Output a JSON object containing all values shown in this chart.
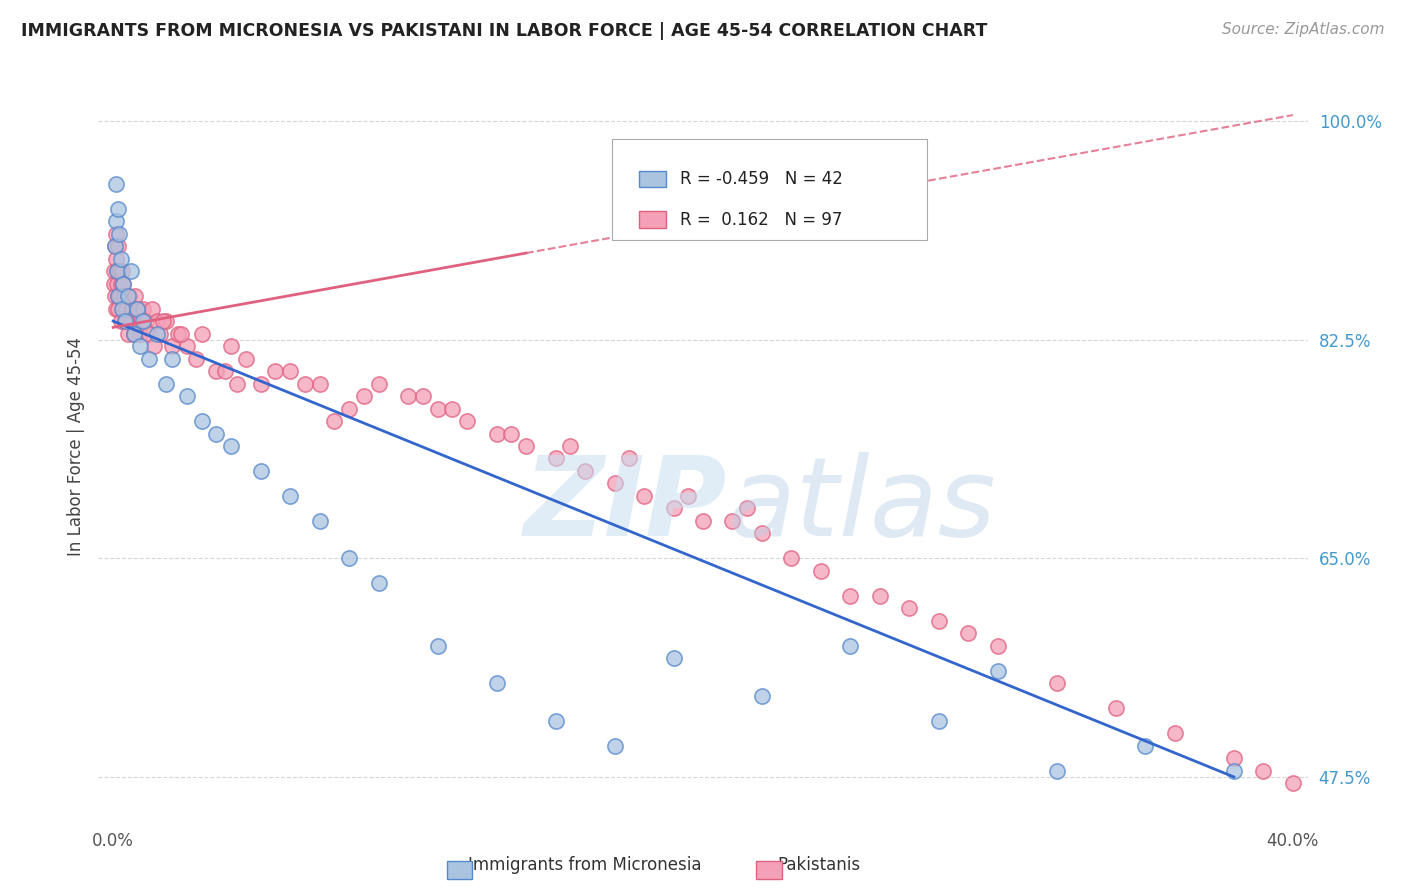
{
  "title": "IMMIGRANTS FROM MICRONESIA VS PAKISTANI IN LABOR FORCE | AGE 45-54 CORRELATION CHART",
  "source": "Source: ZipAtlas.com",
  "xlim": [
    -0.5,
    40.5
  ],
  "ylim": [
    44.0,
    104.0
  ],
  "ytick_vals": [
    47.5,
    65.0,
    82.5,
    100.0
  ],
  "ytick_labels": [
    "47.5%",
    "65.0%",
    "82.5%",
    "100.0%"
  ],
  "xtick_vals": [
    0.0,
    40.0
  ],
  "xtick_labels": [
    "0.0%",
    "40.0%"
  ],
  "micronesia_color": "#aac4e0",
  "pakistani_color": "#f4a0b8",
  "micronesia_edge": "#5588cc",
  "pakistani_edge": "#e06080",
  "trend_blue": "#3366cc",
  "trend_pink": "#e06080",
  "legend_R_micro": "-0.459",
  "legend_N_micro": "42",
  "legend_R_paki": "0.162",
  "legend_N_paki": "97",
  "background_color": "#ffffff",
  "grid_color": "#cccccc",
  "ylabel": "In Labor Force | Age 45-54",
  "micro_x": [
    0.05,
    0.08,
    0.1,
    0.12,
    0.15,
    0.18,
    0.2,
    0.25,
    0.3,
    0.35,
    0.4,
    0.5,
    0.6,
    0.7,
    0.8,
    0.9,
    1.0,
    1.2,
    1.5,
    1.8,
    2.0,
    2.5,
    3.0,
    3.5,
    4.0,
    5.0,
    6.0,
    7.0,
    8.0,
    9.0,
    11.0,
    13.0,
    15.0,
    17.0,
    19.0,
    22.0,
    25.0,
    28.0,
    30.0,
    32.0,
    35.0,
    38.0
  ],
  "micro_y": [
    90.0,
    95.0,
    92.0,
    88.0,
    93.0,
    86.0,
    91.0,
    89.0,
    85.0,
    87.0,
    84.0,
    86.0,
    88.0,
    83.0,
    85.0,
    82.0,
    84.0,
    81.0,
    83.0,
    79.0,
    81.0,
    78.0,
    76.0,
    75.0,
    74.0,
    72.0,
    70.0,
    68.0,
    65.0,
    63.0,
    58.0,
    55.0,
    52.0,
    50.0,
    57.0,
    54.0,
    58.0,
    52.0,
    56.0,
    48.0,
    50.0,
    48.0
  ],
  "paki_x": [
    0.02,
    0.04,
    0.05,
    0.06,
    0.08,
    0.09,
    0.1,
    0.12,
    0.13,
    0.15,
    0.16,
    0.18,
    0.2,
    0.22,
    0.25,
    0.28,
    0.3,
    0.33,
    0.35,
    0.38,
    0.4,
    0.45,
    0.5,
    0.55,
    0.6,
    0.65,
    0.7,
    0.75,
    0.8,
    0.85,
    0.9,
    0.95,
    1.0,
    1.1,
    1.2,
    1.3,
    1.4,
    1.5,
    1.6,
    1.8,
    2.0,
    2.2,
    2.5,
    2.8,
    3.0,
    3.5,
    4.0,
    4.5,
    5.0,
    6.0,
    7.0,
    8.0,
    9.0,
    10.0,
    11.0,
    12.0,
    13.0,
    14.0,
    15.0,
    16.0,
    17.0,
    18.0,
    19.0,
    20.0,
    21.0,
    22.0,
    23.0,
    24.0,
    25.0,
    26.0,
    27.0,
    28.0,
    29.0,
    30.0,
    32.0,
    34.0,
    36.0,
    38.0,
    39.0,
    40.0,
    10.5,
    5.5,
    7.5,
    3.8,
    4.2,
    6.5,
    8.5,
    11.5,
    13.5,
    15.5,
    17.5,
    19.5,
    21.5,
    2.3,
    1.7,
    0.42,
    0.72
  ],
  "paki_y": [
    87.0,
    88.0,
    90.0,
    86.0,
    89.0,
    85.0,
    91.0,
    87.0,
    88.0,
    86.0,
    90.0,
    85.0,
    88.0,
    86.0,
    87.0,
    84.0,
    88.0,
    85.0,
    87.0,
    86.0,
    84.0,
    85.0,
    83.0,
    86.0,
    84.0,
    85.0,
    83.0,
    86.0,
    84.0,
    85.0,
    83.0,
    84.0,
    85.0,
    84.0,
    83.0,
    85.0,
    82.0,
    84.0,
    83.0,
    84.0,
    82.0,
    83.0,
    82.0,
    81.0,
    83.0,
    80.0,
    82.0,
    81.0,
    79.0,
    80.0,
    79.0,
    77.0,
    79.0,
    78.0,
    77.0,
    76.0,
    75.0,
    74.0,
    73.0,
    72.0,
    71.0,
    70.0,
    69.0,
    68.0,
    68.0,
    67.0,
    65.0,
    64.0,
    62.0,
    62.0,
    61.0,
    60.0,
    59.0,
    58.0,
    55.0,
    53.0,
    51.0,
    49.0,
    48.0,
    47.0,
    78.0,
    80.0,
    76.0,
    80.0,
    79.0,
    79.0,
    78.0,
    77.0,
    75.0,
    74.0,
    73.0,
    70.0,
    69.0,
    83.0,
    84.0,
    84.0,
    83.0
  ],
  "blue_trend_x": [
    0.0,
    38.0
  ],
  "blue_trend_y": [
    84.0,
    47.5
  ],
  "blue_solid_end_x": 38.0,
  "pink_trend_x": [
    0.0,
    40.0
  ],
  "pink_trend_y": [
    83.5,
    100.5
  ],
  "pink_solid_end_x": 14.0
}
